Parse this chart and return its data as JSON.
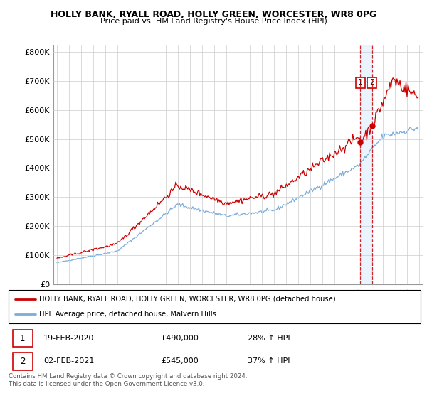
{
  "title": "HOLLY BANK, RYALL ROAD, HOLLY GREEN, WORCESTER, WR8 0PG",
  "subtitle": "Price paid vs. HM Land Registry's House Price Index (HPI)",
  "legend_line1": "HOLLY BANK, RYALL ROAD, HOLLY GREEN, WORCESTER, WR8 0PG (detached house)",
  "legend_line2": "HPI: Average price, detached house, Malvern Hills",
  "transaction1_date": "19-FEB-2020",
  "transaction1_price": "£490,000",
  "transaction1_hpi": "28% ↑ HPI",
  "transaction2_date": "02-FEB-2021",
  "transaction2_price": "£545,000",
  "transaction2_hpi": "37% ↑ HPI",
  "copyright": "Contains HM Land Registry data © Crown copyright and database right 2024.\nThis data is licensed under the Open Government Licence v3.0.",
  "red_color": "#cc0000",
  "blue_color": "#7aaddb",
  "dashed_color": "#cc0000",
  "shade_color": "#ddeeff",
  "ylim": [
    0,
    820000
  ],
  "yticks": [
    0,
    100000,
    200000,
    300000,
    400000,
    500000,
    600000,
    700000,
    800000
  ],
  "ytick_labels": [
    "£0",
    "£100K",
    "£200K",
    "£300K",
    "£400K",
    "£500K",
    "£600K",
    "£700K",
    "£800K"
  ],
  "transaction1_x": 2020.13,
  "transaction1_y": 490000,
  "transaction2_x": 2021.09,
  "transaction2_y": 545000,
  "xlim_left": 1994.7,
  "xlim_right": 2025.3
}
